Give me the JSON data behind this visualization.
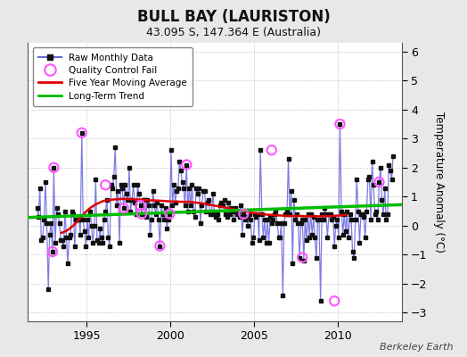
{
  "title": "BULL BAY (LAURISTON)",
  "subtitle": "43.095 S, 147.364 E (Australia)",
  "ylabel": "Temperature Anomaly (°C)",
  "credit": "Berkeley Earth",
  "ylim": [
    -3.3,
    6.3
  ],
  "xlim": [
    1991.5,
    2013.8
  ],
  "yticks": [
    -3,
    -2,
    -1,
    0,
    1,
    2,
    3,
    4,
    5,
    6
  ],
  "xticks": [
    1995,
    2000,
    2005,
    2010
  ],
  "bg_color": "#e8e8e8",
  "plot_bg_color": "#ffffff",
  "raw_color": "#6666dd",
  "raw_alpha": 0.85,
  "raw_marker_color": "#111111",
  "qc_fail_color": "#ff55ff",
  "moving_avg_color": "#dd0000",
  "trend_color": "#00bb00",
  "raw_data_x": [
    1992.04,
    1992.12,
    1992.21,
    1992.29,
    1992.37,
    1992.46,
    1992.54,
    1992.62,
    1992.71,
    1992.79,
    1992.87,
    1992.96,
    1993.04,
    1993.12,
    1993.21,
    1993.29,
    1993.37,
    1993.46,
    1993.54,
    1993.62,
    1993.71,
    1993.79,
    1993.87,
    1993.96,
    1994.04,
    1994.12,
    1994.21,
    1994.29,
    1994.37,
    1994.46,
    1994.54,
    1994.62,
    1994.71,
    1994.79,
    1994.87,
    1994.96,
    1995.04,
    1995.12,
    1995.21,
    1995.29,
    1995.37,
    1995.46,
    1995.54,
    1995.62,
    1995.71,
    1995.79,
    1995.87,
    1995.96,
    1996.04,
    1996.12,
    1996.21,
    1996.29,
    1996.37,
    1996.46,
    1996.54,
    1996.62,
    1996.71,
    1996.79,
    1996.87,
    1996.96,
    1997.04,
    1997.12,
    1997.21,
    1997.29,
    1997.37,
    1997.46,
    1997.54,
    1997.62,
    1997.71,
    1997.79,
    1997.87,
    1997.96,
    1998.04,
    1998.12,
    1998.21,
    1998.29,
    1998.37,
    1998.46,
    1998.54,
    1998.62,
    1998.71,
    1998.79,
    1998.87,
    1998.96,
    1999.04,
    1999.12,
    1999.21,
    1999.29,
    1999.37,
    1999.46,
    1999.54,
    1999.62,
    1999.71,
    1999.79,
    1999.87,
    1999.96,
    2000.04,
    2000.12,
    2000.21,
    2000.29,
    2000.37,
    2000.46,
    2000.54,
    2000.62,
    2000.71,
    2000.79,
    2000.87,
    2000.96,
    2001.04,
    2001.12,
    2001.21,
    2001.29,
    2001.37,
    2001.46,
    2001.54,
    2001.62,
    2001.71,
    2001.79,
    2001.87,
    2001.96,
    2002.04,
    2002.12,
    2002.21,
    2002.29,
    2002.37,
    2002.46,
    2002.54,
    2002.62,
    2002.71,
    2002.79,
    2002.87,
    2002.96,
    2003.04,
    2003.12,
    2003.21,
    2003.29,
    2003.37,
    2003.46,
    2003.54,
    2003.62,
    2003.71,
    2003.79,
    2003.87,
    2003.96,
    2004.04,
    2004.12,
    2004.21,
    2004.29,
    2004.37,
    2004.46,
    2004.54,
    2004.62,
    2004.71,
    2004.79,
    2004.87,
    2004.96,
    2005.04,
    2005.12,
    2005.21,
    2005.29,
    2005.37,
    2005.46,
    2005.54,
    2005.62,
    2005.71,
    2005.79,
    2005.87,
    2005.96,
    2006.04,
    2006.12,
    2006.21,
    2006.29,
    2006.37,
    2006.46,
    2006.54,
    2006.62,
    2006.71,
    2006.79,
    2006.87,
    2006.96,
    2007.04,
    2007.12,
    2007.21,
    2007.29,
    2007.37,
    2007.46,
    2007.54,
    2007.62,
    2007.71,
    2007.79,
    2007.87,
    2007.96,
    2008.04,
    2008.12,
    2008.21,
    2008.29,
    2008.37,
    2008.46,
    2008.54,
    2008.62,
    2008.71,
    2008.79,
    2008.87,
    2008.96,
    2009.04,
    2009.12,
    2009.21,
    2009.29,
    2009.37,
    2009.46,
    2009.54,
    2009.62,
    2009.71,
    2009.79,
    2009.87,
    2009.96,
    2010.04,
    2010.12,
    2010.21,
    2010.29,
    2010.37,
    2010.46,
    2010.54,
    2010.62,
    2010.71,
    2010.79,
    2010.87,
    2010.96,
    2011.04,
    2011.12,
    2011.21,
    2011.29,
    2011.37,
    2011.46,
    2011.54,
    2011.62,
    2011.71,
    2011.79,
    2011.87,
    2011.96,
    2012.04,
    2012.12,
    2012.21,
    2012.29,
    2012.37,
    2012.46,
    2012.54,
    2012.62,
    2012.71,
    2012.79,
    2012.87,
    2012.96,
    2013.04,
    2013.12,
    2013.21,
    2013.29
  ],
  "raw_data_y": [
    0.6,
    0.3,
    1.3,
    -0.5,
    -0.4,
    0.2,
    1.5,
    0.1,
    -2.2,
    -0.3,
    0.1,
    -0.9,
    2.0,
    -0.6,
    0.6,
    0.4,
    0.1,
    -0.5,
    -0.5,
    -0.7,
    0.5,
    -0.4,
    -1.3,
    -0.4,
    -0.3,
    0.5,
    0.4,
    -0.7,
    0.2,
    0.2,
    0.2,
    -0.3,
    3.2,
    0.2,
    -0.2,
    -0.7,
    0.2,
    -0.4,
    0.5,
    0.0,
    -0.6,
    0.0,
    1.6,
    -0.5,
    -0.6,
    -0.1,
    -0.4,
    -0.6,
    0.2,
    0.5,
    0.9,
    -0.4,
    -0.7,
    1.4,
    1.3,
    1.7,
    2.7,
    0.7,
    1.2,
    -0.6,
    1.4,
    1.3,
    0.6,
    1.4,
    1.1,
    0.9,
    2.0,
    0.5,
    0.9,
    1.4,
    0.8,
    0.4,
    1.4,
    1.1,
    0.7,
    0.4,
    0.9,
    0.9,
    0.3,
    0.9,
    0.7,
    -0.3,
    0.2,
    1.2,
    0.7,
    0.4,
    0.8,
    0.2,
    -0.7,
    0.7,
    0.4,
    0.2,
    0.6,
    -0.1,
    0.2,
    0.4,
    2.6,
    0.7,
    1.4,
    0.8,
    1.2,
    1.3,
    2.2,
    1.9,
    1.5,
    1.3,
    0.7,
    2.1,
    0.5,
    1.3,
    0.7,
    1.4,
    0.5,
    0.3,
    1.3,
    1.1,
    1.3,
    0.1,
    0.7,
    1.2,
    1.2,
    0.5,
    0.8,
    0.9,
    0.4,
    0.5,
    1.1,
    0.4,
    0.3,
    0.4,
    0.2,
    0.7,
    0.8,
    0.7,
    0.9,
    0.4,
    0.3,
    0.8,
    0.4,
    0.6,
    0.5,
    0.2,
    0.6,
    0.4,
    0.5,
    0.3,
    0.7,
    -0.3,
    0.4,
    0.2,
    0.3,
    0.0,
    0.4,
    0.2,
    -0.6,
    -0.4,
    0.4,
    0.3,
    0.4,
    -0.5,
    2.6,
    0.4,
    -0.4,
    0.2,
    -0.6,
    0.2,
    -0.6,
    0.3,
    0.1,
    0.2,
    0.4,
    0.5,
    0.1,
    -0.4,
    -0.4,
    0.1,
    -2.4,
    0.1,
    0.4,
    0.5,
    2.3,
    0.4,
    1.2,
    -1.3,
    0.9,
    0.2,
    0.4,
    0.1,
    -1.1,
    0.1,
    0.2,
    -1.2,
    0.2,
    -0.5,
    0.4,
    -0.4,
    0.4,
    -0.3,
    0.3,
    -0.4,
    -1.1,
    0.2,
    0.2,
    -2.6,
    0.4,
    0.2,
    0.6,
    0.4,
    -0.4,
    0.4,
    0.4,
    0.2,
    0.3,
    -0.7,
    0.0,
    0.2,
    -0.4,
    3.5,
    0.5,
    -0.3,
    0.4,
    -0.2,
    0.5,
    -0.4,
    0.4,
    0.2,
    -0.9,
    -1.1,
    0.2,
    1.6,
    0.5,
    -0.6,
    0.4,
    0.4,
    0.3,
    -0.4,
    0.5,
    1.6,
    1.7,
    0.2,
    2.2,
    1.4,
    0.4,
    0.5,
    0.2,
    1.5,
    2.0,
    0.9,
    0.4,
    1.3,
    0.2,
    0.4,
    2.1,
    1.9,
    1.6,
    2.4
  ],
  "qc_fail_x": [
    1992.96,
    1993.04,
    1994.71,
    1996.12,
    1997.21,
    1998.21,
    1998.29,
    1999.37,
    1999.96,
    2000.96,
    2004.37,
    2006.04,
    2007.87,
    2009.79,
    2010.12,
    2012.46
  ],
  "qc_fail_y": [
    -0.9,
    2.0,
    3.2,
    1.4,
    0.6,
    0.7,
    0.4,
    -0.7,
    0.4,
    2.1,
    0.4,
    2.6,
    -1.1,
    -2.6,
    3.5,
    1.5
  ],
  "moving_avg_x": [
    1993.5,
    1993.8,
    1994.0,
    1994.3,
    1994.6,
    1994.9,
    1995.2,
    1995.5,
    1995.8,
    1996.0,
    1996.3,
    1996.6,
    1996.9,
    1997.1,
    1997.4,
    1997.7,
    1997.9,
    1998.2,
    1998.5,
    1998.8,
    1999.0,
    1999.3,
    1999.6,
    1999.8,
    2000.1,
    2000.4,
    2000.6,
    2000.9,
    2001.2,
    2001.4,
    2001.7,
    2002.0,
    2002.2,
    2002.5,
    2002.8,
    2003.0,
    2003.3,
    2003.6,
    2003.8,
    2004.1,
    2004.4,
    2004.6,
    2004.9,
    2005.2,
    2005.4,
    2005.7,
    2006.0,
    2006.2,
    2006.5,
    2006.8,
    2007.0,
    2007.3,
    2007.6,
    2007.8,
    2008.1,
    2008.4,
    2008.6,
    2008.9,
    2009.1,
    2009.4,
    2009.7,
    2009.9,
    2010.2,
    2010.5
  ],
  "moving_avg_y": [
    -0.25,
    -0.18,
    -0.1,
    0.05,
    0.25,
    0.45,
    0.6,
    0.72,
    0.8,
    0.85,
    0.88,
    0.9,
    0.91,
    0.92,
    0.92,
    0.91,
    0.9,
    0.9,
    0.88,
    0.87,
    0.87,
    0.86,
    0.85,
    0.84,
    0.83,
    0.83,
    0.82,
    0.82,
    0.82,
    0.8,
    0.78,
    0.76,
    0.73,
    0.7,
    0.67,
    0.65,
    0.62,
    0.59,
    0.56,
    0.53,
    0.5,
    0.47,
    0.44,
    0.42,
    0.4,
    0.38,
    0.37,
    0.36,
    0.35,
    0.34,
    0.33,
    0.33,
    0.33,
    0.33,
    0.32,
    0.32,
    0.32,
    0.32,
    0.32,
    0.33,
    0.33,
    0.34,
    0.35,
    0.37
  ],
  "trend_x": [
    1991.5,
    2013.8
  ],
  "trend_y": [
    0.28,
    0.72
  ],
  "legend_loc": "upper left"
}
